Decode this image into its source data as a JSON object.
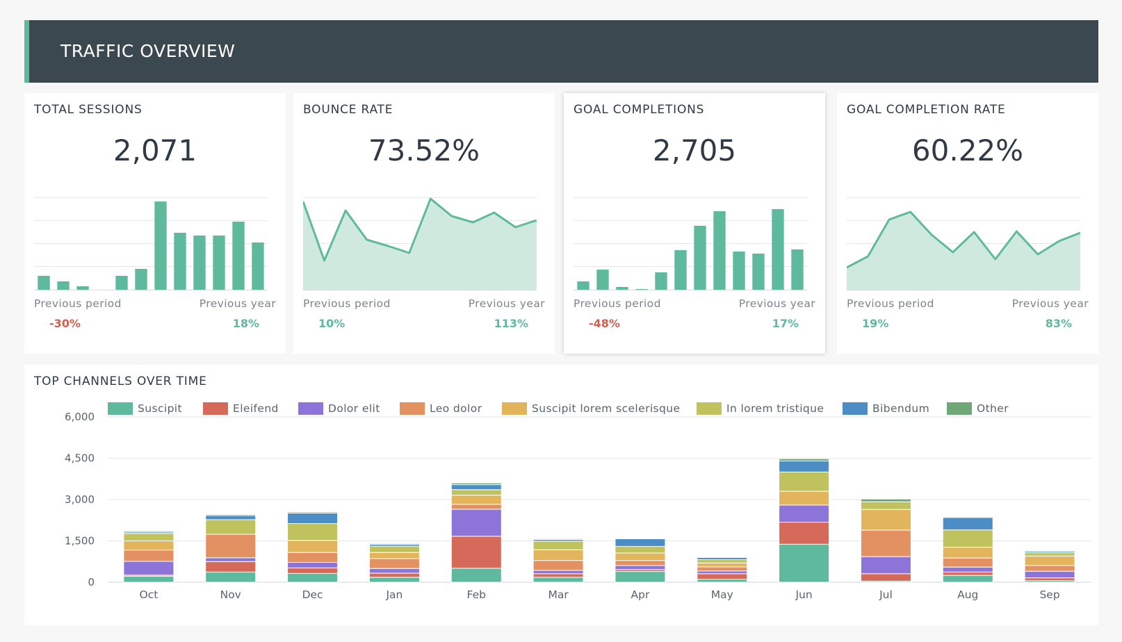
{
  "header": {
    "title": "TRAFFIC OVERVIEW"
  },
  "colors": {
    "accent": "#5fb99c",
    "area_fill": "#cfe9de",
    "negative": "#d0604f",
    "positive": "#5fb99c"
  },
  "kpis": [
    {
      "title": "TOTAL SESSIONS",
      "value": "2,071",
      "spark_type": "bar",
      "spark": [
        21,
        13,
        6,
        1,
        21,
        31,
        128,
        83,
        79,
        79,
        99,
        69
      ],
      "prev_period_label": "Previous period",
      "prev_period_value": "-30%",
      "prev_period_trend": "negative",
      "prev_year_label": "Previous year",
      "prev_year_value": "18%",
      "prev_year_trend": "positive"
    },
    {
      "title": "BOUNCE RATE",
      "value": "73.52%",
      "spark_type": "line",
      "spark": [
        128,
        43,
        115,
        73,
        64,
        54,
        132,
        107,
        98,
        112,
        91,
        101
      ],
      "prev_period_label": "Previous period",
      "prev_period_value": "10%",
      "prev_period_trend": "positive",
      "prev_year_label": "Previous year",
      "prev_year_value": "113%",
      "prev_year_trend": "positive"
    },
    {
      "title": "GOAL COMPLETIONS",
      "value": "2,705",
      "spark_type": "bar",
      "spark": [
        13,
        30,
        5,
        2,
        26,
        58,
        93,
        114,
        56,
        53,
        117,
        59
      ],
      "prev_period_label": "Previous period",
      "prev_period_value": "-48%",
      "prev_period_trend": "negative",
      "prev_year_label": "Previous year",
      "prev_year_value": "17%",
      "prev_year_trend": "positive"
    },
    {
      "title": "GOAL COMPLETION RATE",
      "value": "60.22%",
      "spark_type": "line",
      "spark": [
        33,
        49,
        102,
        113,
        80,
        55,
        84,
        45,
        85,
        52,
        71,
        83
      ],
      "prev_period_label": "Previous period",
      "prev_period_value": "19%",
      "prev_period_trend": "positive",
      "prev_year_label": "Previous year",
      "prev_year_value": "83%",
      "prev_year_trend": "positive"
    }
  ],
  "chart_data": {
    "type": "bar",
    "stacked": true,
    "title": "TOP CHANNELS OVER TIME",
    "categories": [
      "Oct",
      "Nov",
      "Dec",
      "Jan",
      "Feb",
      "Mar",
      "Apr",
      "May",
      "Jun",
      "Jul",
      "Aug",
      "Sep"
    ],
    "ylim": [
      0,
      6000
    ],
    "yticks": [
      "0",
      "1,500",
      "3,000",
      "4,500",
      "6,000"
    ],
    "ytick_values": [
      0,
      1500,
      3000,
      4500,
      6000
    ],
    "series": [
      {
        "name": "Suscipit",
        "color": "#5fb99c",
        "values": [
          220,
          370,
          320,
          180,
          510,
          180,
          390,
          110,
          1380,
          40,
          250,
          60
        ]
      },
      {
        "name": "Eleifend",
        "color": "#d5695a",
        "values": [
          40,
          380,
          200,
          150,
          1160,
          130,
          70,
          200,
          800,
          270,
          120,
          100
        ]
      },
      {
        "name": "Dolor elit",
        "color": "#8c74d9",
        "values": [
          500,
          140,
          200,
          170,
          980,
          120,
          150,
          100,
          620,
          620,
          180,
          240
        ]
      },
      {
        "name": "Leo dolor",
        "color": "#e39162",
        "values": [
          410,
          850,
          360,
          360,
          180,
          360,
          180,
          150,
          0,
          960,
          330,
          210
        ]
      },
      {
        "name": "Suscipit lorem scelerisque",
        "color": "#e2b55c",
        "values": [
          330,
          0,
          440,
          220,
          330,
          390,
          270,
          140,
          500,
          750,
          390,
          340
        ]
      },
      {
        "name": "In lorem tristique",
        "color": "#bfc25d",
        "values": [
          270,
          530,
          610,
          230,
          200,
          310,
          240,
          120,
          700,
          280,
          630,
          120
        ]
      },
      {
        "name": "Bibendum",
        "color": "#4c8dc5",
        "values": [
          50,
          150,
          380,
          70,
          180,
          60,
          280,
          80,
          400,
          0,
          450,
          50
        ]
      },
      {
        "name": "Other",
        "color": "#6fa776",
        "values": [
          40,
          40,
          40,
          30,
          60,
          30,
          20,
          20,
          80,
          100,
          30,
          30
        ]
      }
    ]
  }
}
